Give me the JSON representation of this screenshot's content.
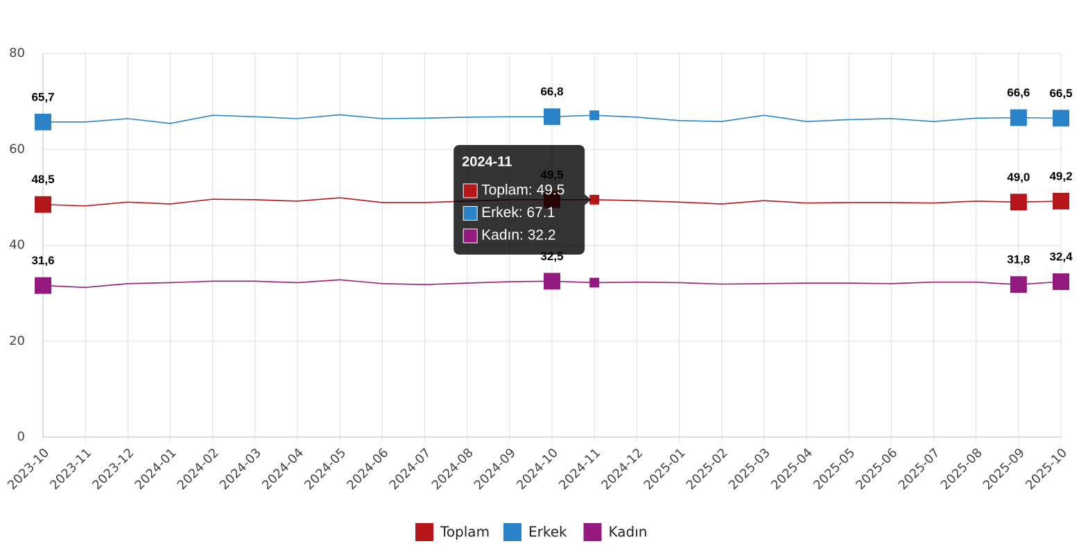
{
  "chart_data": {
    "type": "line",
    "categories": [
      "2023-10",
      "2023-11",
      "2023-12",
      "2024-01",
      "2024-02",
      "2024-03",
      "2024-04",
      "2024-05",
      "2024-06",
      "2024-07",
      "2024-08",
      "2024-09",
      "2024-10",
      "2024-11",
      "2024-12",
      "2025-01",
      "2025-02",
      "2025-03",
      "2025-04",
      "2025-05",
      "2025-06",
      "2025-07",
      "2025-08",
      "2025-09",
      "2025-10"
    ],
    "series": [
      {
        "name": "Toplam",
        "color": "#b5161a",
        "values": [
          48.5,
          48.2,
          49.0,
          48.6,
          49.6,
          49.5,
          49.2,
          49.9,
          48.9,
          48.9,
          49.2,
          49.5,
          49.5,
          49.5,
          49.3,
          49.0,
          48.6,
          49.3,
          48.8,
          48.9,
          48.9,
          48.8,
          49.2,
          49.0,
          49.2
        ],
        "value_labels": [
          "48,5",
          null,
          null,
          null,
          null,
          null,
          null,
          null,
          null,
          null,
          null,
          null,
          "49,5",
          null,
          null,
          null,
          null,
          null,
          null,
          null,
          null,
          null,
          null,
          "49,0",
          "49,2"
        ]
      },
      {
        "name": "Erkek",
        "color": "#2a82c8",
        "values": [
          65.7,
          65.7,
          66.4,
          65.4,
          67.1,
          66.8,
          66.4,
          67.2,
          66.4,
          66.5,
          66.7,
          66.8,
          66.8,
          67.1,
          66.7,
          66.0,
          65.8,
          67.1,
          65.8,
          66.2,
          66.4,
          65.8,
          66.5,
          66.6,
          66.5
        ],
        "value_labels": [
          "65,7",
          null,
          null,
          null,
          null,
          null,
          null,
          null,
          null,
          null,
          null,
          null,
          "66,8",
          null,
          null,
          null,
          null,
          null,
          null,
          null,
          null,
          null,
          null,
          "66,6",
          "66,5"
        ]
      },
      {
        "name": "Kadın",
        "color": "#951a80",
        "values": [
          31.6,
          31.2,
          32.0,
          32.2,
          32.5,
          32.5,
          32.2,
          32.8,
          32.0,
          31.8,
          32.1,
          32.4,
          32.5,
          32.2,
          32.3,
          32.2,
          31.9,
          32.0,
          32.1,
          32.1,
          32.0,
          32.3,
          32.3,
          31.8,
          32.4
        ],
        "value_labels": [
          "31,6",
          null,
          null,
          null,
          null,
          null,
          null,
          null,
          null,
          null,
          null,
          null,
          "32,5",
          null,
          null,
          null,
          null,
          null,
          null,
          null,
          null,
          null,
          null,
          "31,8",
          "32,4"
        ]
      }
    ],
    "ylim": [
      0,
      80
    ],
    "yticks": [
      0,
      20,
      40,
      60,
      80
    ],
    "grid": true,
    "legend": "bottom",
    "tooltip": {
      "category": "2024-11",
      "items": [
        "Toplam: 49.5",
        "Erkek: 67.1",
        "Kadın: 32.2"
      ]
    }
  }
}
